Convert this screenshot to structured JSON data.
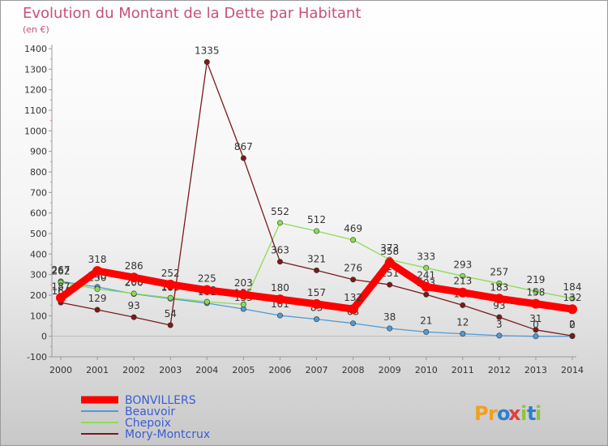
{
  "chart_data": {
    "type": "line",
    "title": "Evolution du Montant de la Dette par Habitant",
    "subtitle": "(en €)",
    "xlabel": "",
    "ylabel": "",
    "x": [
      "2000",
      "2001",
      "2002",
      "2003",
      "2004",
      "2005",
      "2006",
      "2007",
      "2008",
      "2009",
      "2010",
      "2011",
      "2012",
      "2013",
      "2014"
    ],
    "ylim": [
      -100,
      1400
    ],
    "yticks": [
      "-100",
      "0",
      "100",
      "200",
      "300",
      "400",
      "500",
      "600",
      "700",
      "800",
      "900",
      "1000",
      "1100",
      "1200",
      "1300",
      "1400"
    ],
    "grid": false,
    "legend_position": "bottom-left",
    "series": [
      {
        "name": "BONVILLERS",
        "color": "#ff0000",
        "values": [
          187,
          318,
          286,
          252,
          225,
          203,
          180,
          157,
          132,
          358,
          241,
          213,
          183,
          158,
          132
        ],
        "labels": [
          "187",
          "318",
          "286",
          "252",
          "225",
          "203",
          "180",
          "157",
          "132",
          "358",
          "241",
          "213",
          "183",
          "158",
          "132"
        ]
      },
      {
        "name": "Beauvoir",
        "color": "#4f9ad6",
        "values": [
          267,
          240,
          206,
          183,
          161,
          133,
          101,
          83,
          63,
          38,
          21,
          12,
          3,
          0,
          0
        ],
        "labels": [
          "267",
          "240",
          "206",
          "183",
          "161",
          "133",
          "101",
          "83",
          "63",
          "38",
          "21",
          "12",
          "3",
          "0",
          "0"
        ]
      },
      {
        "name": "Chepoix",
        "color": "#8ddc55",
        "values": [
          262,
          230,
          208,
          187,
          168,
          155,
          552,
          512,
          469,
          373,
          333,
          293,
          257,
          219,
          184
        ],
        "labels": [
          "262",
          "230",
          "208",
          "187",
          "168",
          "155",
          "552",
          "512",
          "469",
          "373",
          "333",
          "293",
          "257",
          "219",
          "184"
        ]
      },
      {
        "name": "Mory-Montcrux",
        "color": "#7a1a1a",
        "values": [
          164,
          129,
          93,
          54,
          1335,
          867,
          363,
          321,
          276,
          251,
          203,
          151,
          93,
          31,
          2
        ],
        "labels": [
          "164",
          "129",
          "93",
          "54",
          "1335",
          "867",
          "363",
          "321",
          "276",
          "251",
          "203",
          "151",
          "93",
          "31",
          "2"
        ]
      }
    ]
  },
  "brand": {
    "text": "Proxiti",
    "letters": [
      "P",
      "r",
      "o",
      "x",
      "i",
      "t",
      "i"
    ]
  }
}
